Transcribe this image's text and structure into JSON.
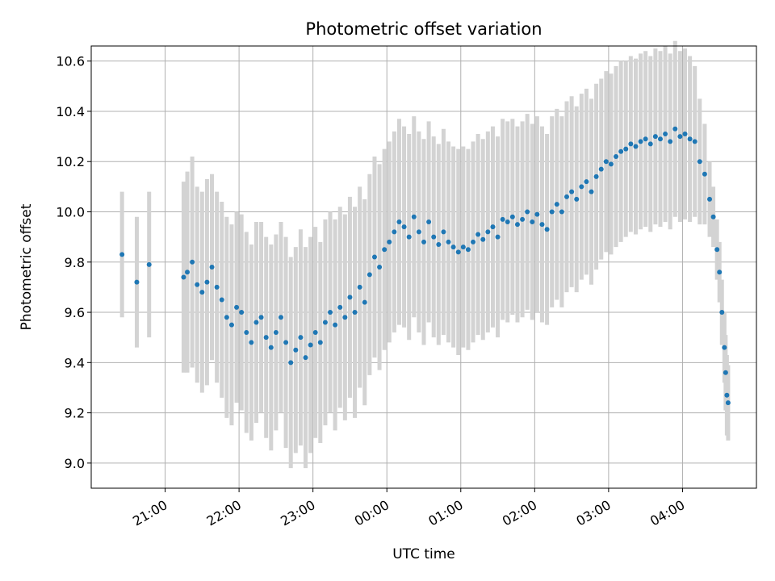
{
  "chart_data": {
    "type": "scatter",
    "title": "Photometric offset variation",
    "xlabel": "UTC time",
    "ylabel": "Photometric offset",
    "x_ticks": [
      "21:00",
      "22:00",
      "23:00",
      "00:00",
      "01:00",
      "02:00",
      "03:00",
      "04:00"
    ],
    "y_ticks": [
      "9.0",
      "9.2",
      "9.4",
      "9.6",
      "9.8",
      "10.0",
      "10.2",
      "10.4",
      "10.6"
    ],
    "xlim": [
      "20:00",
      "05:00"
    ],
    "ylim": [
      8.9,
      10.66
    ],
    "grid": true,
    "colors": {
      "points": "#1f77b4",
      "error_bars": "#d3d3d3",
      "grid": "#b0b0b0",
      "axes": "#000000"
    },
    "series": [
      {
        "points": [
          [
            "20:25",
            9.83,
            0.25
          ],
          [
            "20:37",
            9.72,
            0.26
          ],
          [
            "20:47",
            9.79,
            0.29
          ],
          [
            "21:15",
            9.74,
            0.38
          ],
          [
            "21:18",
            9.76,
            0.4
          ],
          [
            "21:22",
            9.8,
            0.42
          ],
          [
            "21:26",
            9.71,
            0.39
          ],
          [
            "21:30",
            9.68,
            0.4
          ],
          [
            "21:34",
            9.72,
            0.41
          ],
          [
            "21:38",
            9.78,
            0.37
          ],
          [
            "21:42",
            9.7,
            0.38
          ],
          [
            "21:46",
            9.65,
            0.39
          ],
          [
            "21:50",
            9.58,
            0.4
          ],
          [
            "21:54",
            9.55,
            0.4
          ],
          [
            "21:58",
            9.62,
            0.38
          ],
          [
            "22:02",
            9.6,
            0.39
          ],
          [
            "22:06",
            9.52,
            0.4
          ],
          [
            "22:10",
            9.48,
            0.39
          ],
          [
            "22:14",
            9.56,
            0.4
          ],
          [
            "22:18",
            9.58,
            0.38
          ],
          [
            "22:22",
            9.5,
            0.4
          ],
          [
            "22:26",
            9.46,
            0.41
          ],
          [
            "22:30",
            9.52,
            0.39
          ],
          [
            "22:34",
            9.58,
            0.38
          ],
          [
            "22:38",
            9.48,
            0.42
          ],
          [
            "22:42",
            9.4,
            0.42
          ],
          [
            "22:46",
            9.45,
            0.41
          ],
          [
            "22:50",
            9.5,
            0.43
          ],
          [
            "22:54",
            9.42,
            0.44
          ],
          [
            "22:58",
            9.47,
            0.43
          ],
          [
            "23:02",
            9.52,
            0.42
          ],
          [
            "23:06",
            9.48,
            0.4
          ],
          [
            "23:10",
            9.56,
            0.41
          ],
          [
            "23:14",
            9.6,
            0.4
          ],
          [
            "23:18",
            9.55,
            0.42
          ],
          [
            "23:22",
            9.62,
            0.4
          ],
          [
            "23:26",
            9.58,
            0.41
          ],
          [
            "23:30",
            9.66,
            0.4
          ],
          [
            "23:34",
            9.6,
            0.42
          ],
          [
            "23:38",
            9.7,
            0.4
          ],
          [
            "23:42",
            9.64,
            0.41
          ],
          [
            "23:46",
            9.75,
            0.4
          ],
          [
            "23:50",
            9.82,
            0.4
          ],
          [
            "23:54",
            9.78,
            0.41
          ],
          [
            "23:58",
            9.85,
            0.4
          ],
          [
            "00:02",
            9.88,
            0.4
          ],
          [
            "00:06",
            9.92,
            0.4
          ],
          [
            "00:10",
            9.96,
            0.41
          ],
          [
            "00:14",
            9.94,
            0.4
          ],
          [
            "00:18",
            9.9,
            0.41
          ],
          [
            "00:22",
            9.98,
            0.4
          ],
          [
            "00:26",
            9.92,
            0.4
          ],
          [
            "00:30",
            9.88,
            0.41
          ],
          [
            "00:34",
            9.96,
            0.4
          ],
          [
            "00:38",
            9.9,
            0.4
          ],
          [
            "00:42",
            9.87,
            0.4
          ],
          [
            "00:46",
            9.92,
            0.41
          ],
          [
            "00:50",
            9.88,
            0.4
          ],
          [
            "00:54",
            9.86,
            0.4
          ],
          [
            "00:58",
            9.84,
            0.41
          ],
          [
            "01:02",
            9.86,
            0.4
          ],
          [
            "01:06",
            9.85,
            0.4
          ],
          [
            "01:10",
            9.88,
            0.4
          ],
          [
            "01:14",
            9.91,
            0.4
          ],
          [
            "01:18",
            9.89,
            0.4
          ],
          [
            "01:22",
            9.92,
            0.4
          ],
          [
            "01:26",
            9.94,
            0.4
          ],
          [
            "01:30",
            9.9,
            0.4
          ],
          [
            "01:34",
            9.97,
            0.4
          ],
          [
            "01:38",
            9.96,
            0.4
          ],
          [
            "01:42",
            9.98,
            0.39
          ],
          [
            "01:46",
            9.95,
            0.39
          ],
          [
            "01:50",
            9.97,
            0.39
          ],
          [
            "01:54",
            10.0,
            0.39
          ],
          [
            "01:58",
            9.96,
            0.39
          ],
          [
            "02:02",
            9.99,
            0.39
          ],
          [
            "02:06",
            9.95,
            0.39
          ],
          [
            "02:10",
            9.93,
            0.38
          ],
          [
            "02:14",
            10.0,
            0.38
          ],
          [
            "02:18",
            10.03,
            0.38
          ],
          [
            "02:22",
            10.0,
            0.38
          ],
          [
            "02:26",
            10.06,
            0.38
          ],
          [
            "02:30",
            10.08,
            0.38
          ],
          [
            "02:34",
            10.05,
            0.37
          ],
          [
            "02:38",
            10.1,
            0.37
          ],
          [
            "02:42",
            10.12,
            0.37
          ],
          [
            "02:46",
            10.08,
            0.37
          ],
          [
            "02:50",
            10.14,
            0.37
          ],
          [
            "02:54",
            10.17,
            0.36
          ],
          [
            "02:58",
            10.2,
            0.36
          ],
          [
            "03:02",
            10.19,
            0.36
          ],
          [
            "03:06",
            10.22,
            0.36
          ],
          [
            "03:10",
            10.24,
            0.36
          ],
          [
            "03:14",
            10.25,
            0.35
          ],
          [
            "03:18",
            10.27,
            0.35
          ],
          [
            "03:22",
            10.26,
            0.35
          ],
          [
            "03:26",
            10.28,
            0.35
          ],
          [
            "03:30",
            10.29,
            0.35
          ],
          [
            "03:34",
            10.27,
            0.35
          ],
          [
            "03:38",
            10.3,
            0.35
          ],
          [
            "03:42",
            10.29,
            0.35
          ],
          [
            "03:46",
            10.31,
            0.35
          ],
          [
            "03:50",
            10.28,
            0.35
          ],
          [
            "03:54",
            10.33,
            0.35
          ],
          [
            "03:58",
            10.3,
            0.34
          ],
          [
            "04:02",
            10.31,
            0.34
          ],
          [
            "04:06",
            10.29,
            0.33
          ],
          [
            "04:10",
            10.28,
            0.3
          ],
          [
            "04:14",
            10.2,
            0.25
          ],
          [
            "04:18",
            10.15,
            0.2
          ],
          [
            "04:22",
            10.05,
            0.15
          ],
          [
            "04:25",
            9.98,
            0.12
          ],
          [
            "04:28",
            9.85,
            0.12
          ],
          [
            "04:30",
            9.76,
            0.12
          ],
          [
            "04:32",
            9.6,
            0.13
          ],
          [
            "04:34",
            9.46,
            0.14
          ],
          [
            "04:35",
            9.36,
            0.15
          ],
          [
            "04:36",
            9.27,
            0.16
          ],
          [
            "04:37",
            9.24,
            0.15
          ]
        ]
      }
    ]
  }
}
